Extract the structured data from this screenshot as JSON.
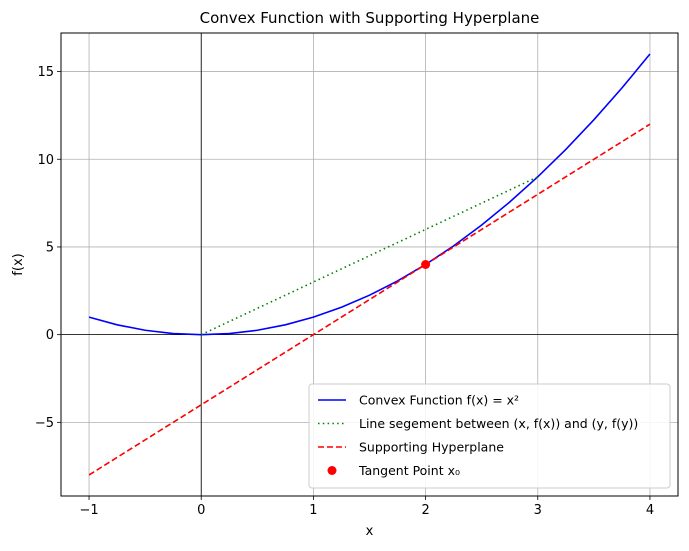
{
  "chart_data": {
    "type": "line",
    "title": "Convex Function with Supporting Hyperplane",
    "xlabel": "x",
    "ylabel": "f(x)",
    "xlim": [
      -1.25,
      4.25
    ],
    "ylim": [
      -9.2,
      17.2
    ],
    "xticks": [
      -1,
      0,
      1,
      2,
      3,
      4
    ],
    "yticks": [
      -5,
      0,
      5,
      10,
      15
    ],
    "xtick_labels": [
      "−1",
      "0",
      "1",
      "2",
      "3",
      "4"
    ],
    "ytick_labels": [
      "−5",
      "0",
      "5",
      "10",
      "15"
    ],
    "grid": true,
    "legend_position": "lower right",
    "series": [
      {
        "name": "Convex Function f(x) = x²",
        "legend_label": "Convex Function f(x) = x²",
        "style": "solid",
        "color": "#0000ff",
        "x": [
          -1,
          -0.75,
          -0.5,
          -0.25,
          0,
          0.25,
          0.5,
          0.75,
          1,
          1.25,
          1.5,
          1.75,
          2,
          2.25,
          2.5,
          2.75,
          3,
          3.25,
          3.5,
          3.75,
          4
        ],
        "y": [
          1,
          0.5625,
          0.25,
          0.0625,
          0,
          0.0625,
          0.25,
          0.5625,
          1,
          1.5625,
          2.25,
          3.0625,
          4,
          5.0625,
          6.25,
          7.5625,
          9,
          10.5625,
          12.25,
          14.0625,
          16
        ]
      },
      {
        "name": "Line segement between (x, f(x)) and (y, f(y))",
        "legend_label": "Line segement between (x, f(x)) and (y, f(y))",
        "style": "dotted",
        "color": "#008000",
        "x": [
          0,
          3
        ],
        "y": [
          0,
          9
        ]
      },
      {
        "name": "Supporting Hyperplane",
        "legend_label": "Supporting Hyperplane",
        "style": "dashed",
        "color": "#ff0000",
        "x": [
          -1,
          4
        ],
        "y": [
          -8,
          12
        ]
      },
      {
        "name": "Tangent Point x₀",
        "legend_label": "Tangent Point x₀",
        "style": "marker",
        "color": "#ff0000",
        "x": [
          2
        ],
        "y": [
          4
        ]
      }
    ]
  }
}
